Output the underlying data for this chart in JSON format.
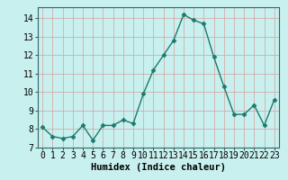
{
  "x": [
    0,
    1,
    2,
    3,
    4,
    5,
    6,
    7,
    8,
    9,
    10,
    11,
    12,
    13,
    14,
    15,
    16,
    17,
    18,
    19,
    20,
    21,
    22,
    23
  ],
  "y": [
    8.1,
    7.6,
    7.5,
    7.6,
    8.2,
    7.4,
    8.2,
    8.2,
    8.5,
    8.3,
    9.9,
    11.2,
    12.0,
    12.8,
    14.2,
    13.9,
    13.7,
    11.9,
    10.3,
    8.8,
    8.8,
    9.3,
    8.2,
    9.6
  ],
  "xlabel": "Humidex (Indice chaleur)",
  "ylim": [
    7,
    14.6
  ],
  "xlim": [
    -0.5,
    23.5
  ],
  "yticks": [
    7,
    8,
    9,
    10,
    11,
    12,
    13,
    14
  ],
  "xticks": [
    0,
    1,
    2,
    3,
    4,
    5,
    6,
    7,
    8,
    9,
    10,
    11,
    12,
    13,
    14,
    15,
    16,
    17,
    18,
    19,
    20,
    21,
    22,
    23
  ],
  "line_color": "#1a7a6e",
  "marker": "D",
  "marker_size": 2.5,
  "bg_color": "#c8f0ee",
  "grid_color_v": "#d4a0a0",
  "grid_color_h": "#d4a0a0",
  "axis_color": "#336666",
  "xlabel_fontsize": 7.5,
  "tick_fontsize": 7,
  "linewidth": 1.0
}
